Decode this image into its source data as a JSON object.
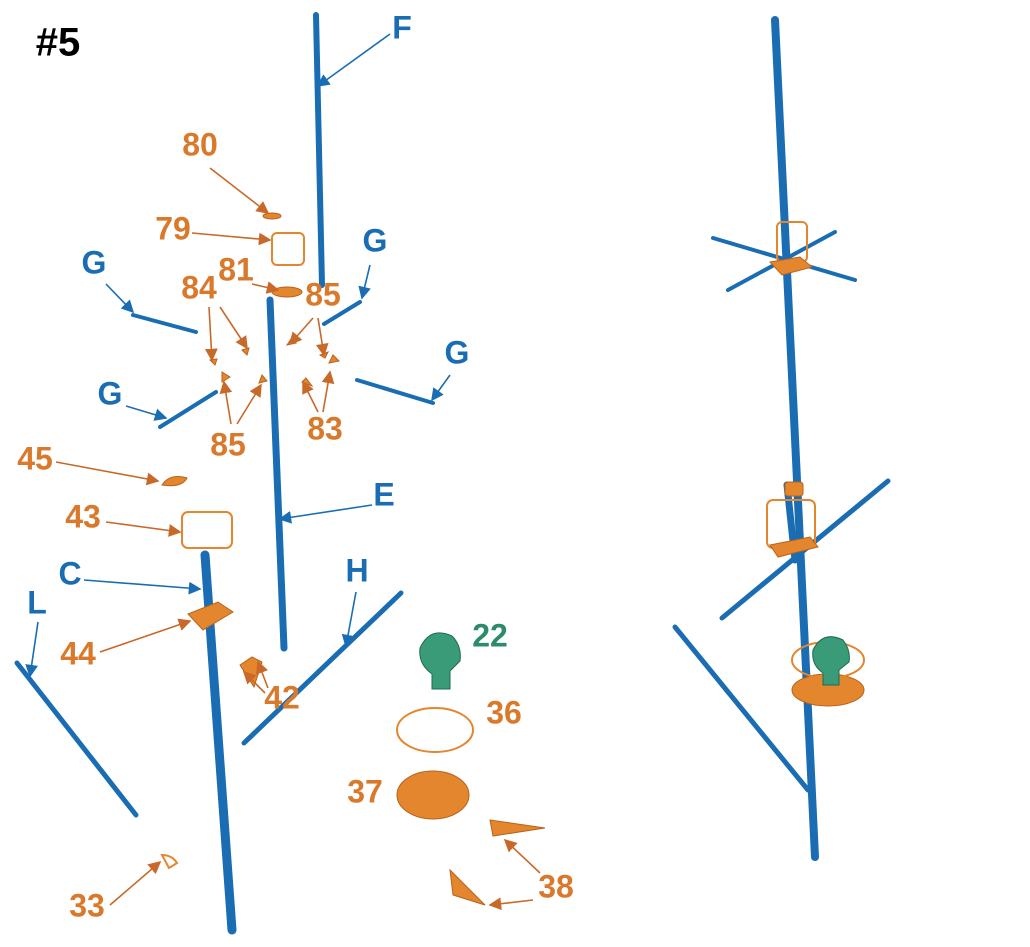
{
  "step": "#5",
  "labels": [
    "F",
    "80",
    "79",
    "G",
    "G",
    "G",
    "G",
    "81",
    "84",
    "85",
    "85",
    "83",
    "45",
    "E",
    "43",
    "C",
    "L",
    "44",
    "H",
    "22",
    "36",
    "42",
    "37",
    "38",
    "33"
  ]
}
